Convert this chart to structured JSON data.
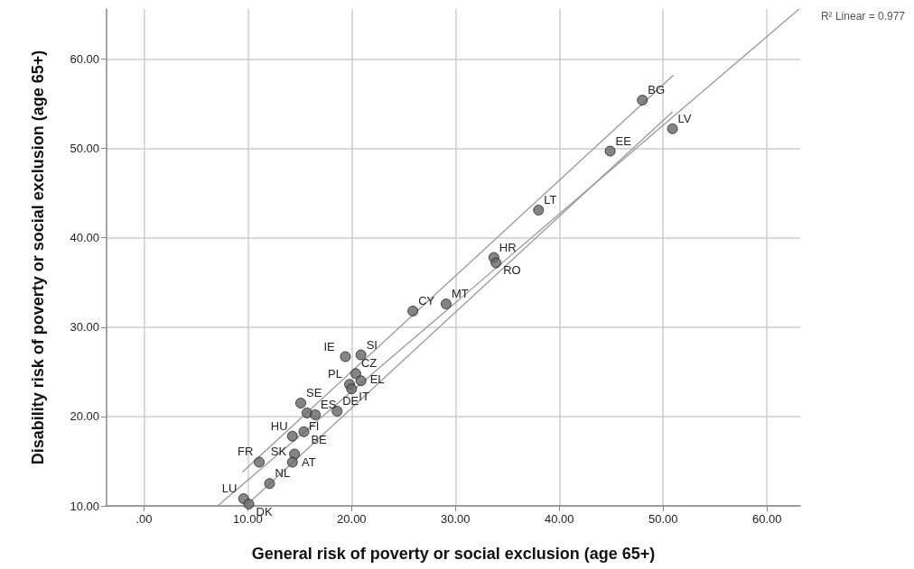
{
  "chart_data": {
    "type": "scatter",
    "xlabel": "General risk of poverty or social exclusion (age 65+)",
    "ylabel": "Disability risk of poverty or social exclusion (age 65+)",
    "xlim": [
      -3.6,
      63.2
    ],
    "ylim": [
      10,
      65.6
    ],
    "xticks": [
      {
        "value": 0,
        "label": ".00"
      },
      {
        "value": 10,
        "label": "10.00"
      },
      {
        "value": 20,
        "label": "20.00"
      },
      {
        "value": 30,
        "label": "30.00"
      },
      {
        "value": 40,
        "label": "40.00"
      },
      {
        "value": 50,
        "label": "50.00"
      },
      {
        "value": 60,
        "label": "60.00"
      }
    ],
    "yticks": [
      {
        "value": 10,
        "label": "10.00"
      },
      {
        "value": 20,
        "label": "20.00"
      },
      {
        "value": 30,
        "label": "30.00"
      },
      {
        "value": 40,
        "label": "40.00"
      },
      {
        "value": 50,
        "label": "50.00"
      },
      {
        "value": 60,
        "label": "60.00"
      }
    ],
    "grid": true,
    "marker": "circle",
    "series": [
      {
        "color": "#666666",
        "x": [
          48.0,
          50.9,
          44.9,
          38.0,
          33.7,
          33.9,
          29.1,
          25.9,
          19.4,
          20.9,
          15.1,
          15.7,
          16.5,
          18.6,
          19.8,
          20.0,
          20.4,
          20.9,
          14.3,
          15.4,
          14.5,
          14.3,
          11.1,
          12.1,
          9.6,
          10.1
        ],
        "values": [
          55.4,
          52.2,
          49.7,
          43.1,
          37.8,
          37.2,
          32.6,
          31.8,
          26.7,
          26.9,
          21.5,
          20.4,
          20.2,
          20.6,
          23.6,
          23.1,
          24.8,
          24.0,
          17.8,
          18.3,
          15.8,
          14.9,
          14.9,
          12.5,
          10.8,
          10.2
        ]
      },
      {
        "type": "line",
        "color": "#999999",
        "marker": "none",
        "x": [
          7.1,
          63.1
        ],
        "values": [
          10.0,
          65.6
        ]
      },
      {
        "type": "line",
        "color": "#999999",
        "marker": "none",
        "x": [
          9.5,
          51.0
        ],
        "values": [
          13.8,
          58.2
        ]
      },
      {
        "type": "line",
        "color": "#999999",
        "marker": "none",
        "x": [
          9.8,
          50.9
        ],
        "values": [
          10.0,
          54.1
        ]
      }
    ],
    "annotations": [
      {
        "text": "BG",
        "x": 48.0,
        "y": 55.4
      },
      {
        "text": "LV",
        "x": 50.9,
        "y": 52.2
      },
      {
        "text": "EE",
        "x": 44.9,
        "y": 49.7
      },
      {
        "text": "LT",
        "x": 38.0,
        "y": 43.1
      },
      {
        "text": "HR",
        "x": 33.7,
        "y": 37.8
      },
      {
        "text": "RO",
        "x": 33.9,
        "y": 37.2
      },
      {
        "text": "MT",
        "x": 29.1,
        "y": 32.6
      },
      {
        "text": "CY",
        "x": 25.9,
        "y": 31.8
      },
      {
        "text": "IE",
        "x": 19.4,
        "y": 26.7
      },
      {
        "text": "SI",
        "x": 20.9,
        "y": 26.9
      },
      {
        "text": "SE",
        "x": 15.1,
        "y": 21.5
      },
      {
        "text": "FI",
        "x": 15.7,
        "y": 20.4
      },
      {
        "text": "ES",
        "x": 16.5,
        "y": 20.2
      },
      {
        "text": "DE",
        "x": 18.6,
        "y": 20.6
      },
      {
        "text": "PL",
        "x": 19.8,
        "y": 23.6
      },
      {
        "text": "IT",
        "x": 20.0,
        "y": 23.1
      },
      {
        "text": "CZ",
        "x": 20.4,
        "y": 24.8
      },
      {
        "text": "EL",
        "x": 20.9,
        "y": 24.0
      },
      {
        "text": "HU",
        "x": 14.3,
        "y": 17.8
      },
      {
        "text": "BE",
        "x": 15.4,
        "y": 18.3
      },
      {
        "text": "AT",
        "x": 14.5,
        "y": 15.8
      },
      {
        "text": "SK",
        "x": 14.3,
        "y": 14.9
      },
      {
        "text": "FR",
        "x": 11.1,
        "y": 14.9
      },
      {
        "text": "NL",
        "x": 12.1,
        "y": 12.5
      },
      {
        "text": "LU",
        "x": 9.6,
        "y": 10.8
      },
      {
        "text": "DK",
        "x": 10.1,
        "y": 10.2
      },
      "R² Linear = 0.977"
    ]
  }
}
